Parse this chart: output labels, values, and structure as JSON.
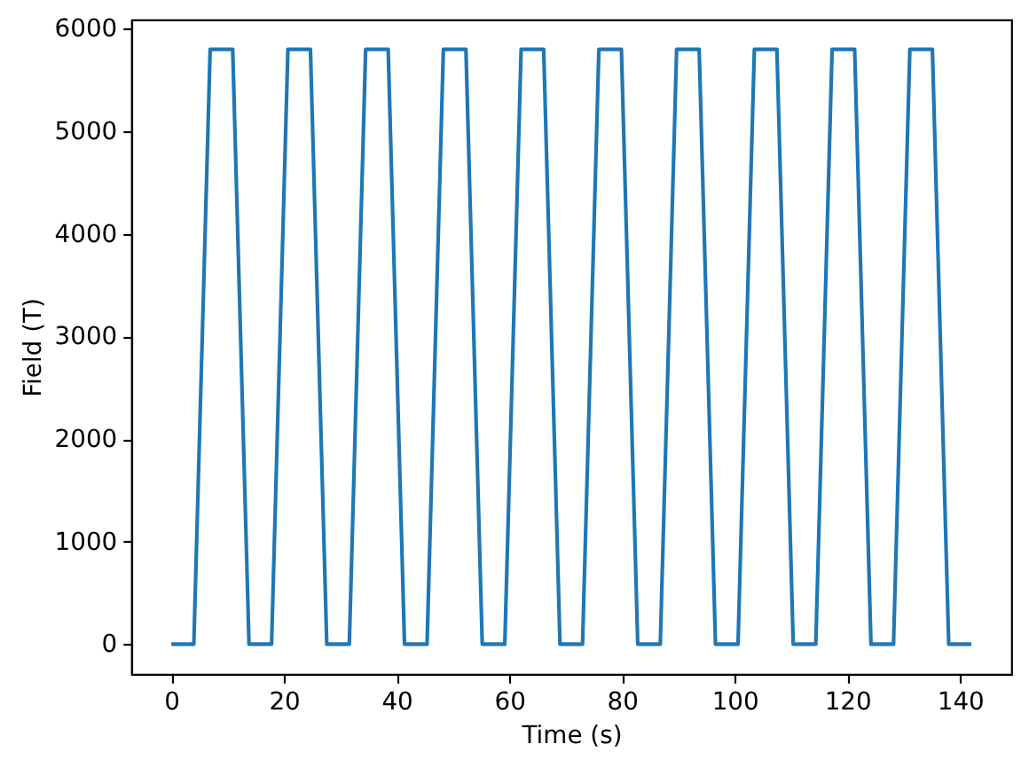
{
  "chart_data": {
    "type": "line",
    "xlabel": "Time (s)",
    "ylabel": "Field (T)",
    "color": "#1f77b4",
    "x": [
      0,
      4,
      6.9,
      10.9,
      13.8,
      17.8,
      20.7,
      24.7,
      27.6,
      31.6,
      34.5,
      38.5,
      41.4,
      45.4,
      48.3,
      52.3,
      55.2,
      59.2,
      62.1,
      66.1,
      69,
      73,
      75.9,
      79.9,
      82.8,
      86.8,
      89.7,
      93.7,
      96.6,
      100.6,
      103.5,
      107.5,
      110.4,
      114.4,
      117.3,
      121.3,
      124.2,
      128.2,
      131.1,
      135.1,
      138,
      142
    ],
    "values": [
      0,
      0,
      5800,
      5800,
      0,
      0,
      5800,
      5800,
      0,
      0,
      5800,
      5800,
      0,
      0,
      5800,
      5800,
      0,
      0,
      5800,
      5800,
      0,
      0,
      5800,
      5800,
      0,
      0,
      5800,
      5800,
      0,
      0,
      5800,
      5800,
      0,
      0,
      5800,
      5800,
      0,
      0,
      5800,
      5800,
      0,
      0
    ],
    "xlim": [
      -7.1,
      149.1
    ],
    "ylim": [
      -290,
      6090
    ],
    "xticks": [
      0,
      20,
      40,
      60,
      80,
      100,
      120,
      140
    ],
    "yticks": [
      0,
      1000,
      2000,
      3000,
      4000,
      5000,
      6000
    ],
    "grid": false
  }
}
